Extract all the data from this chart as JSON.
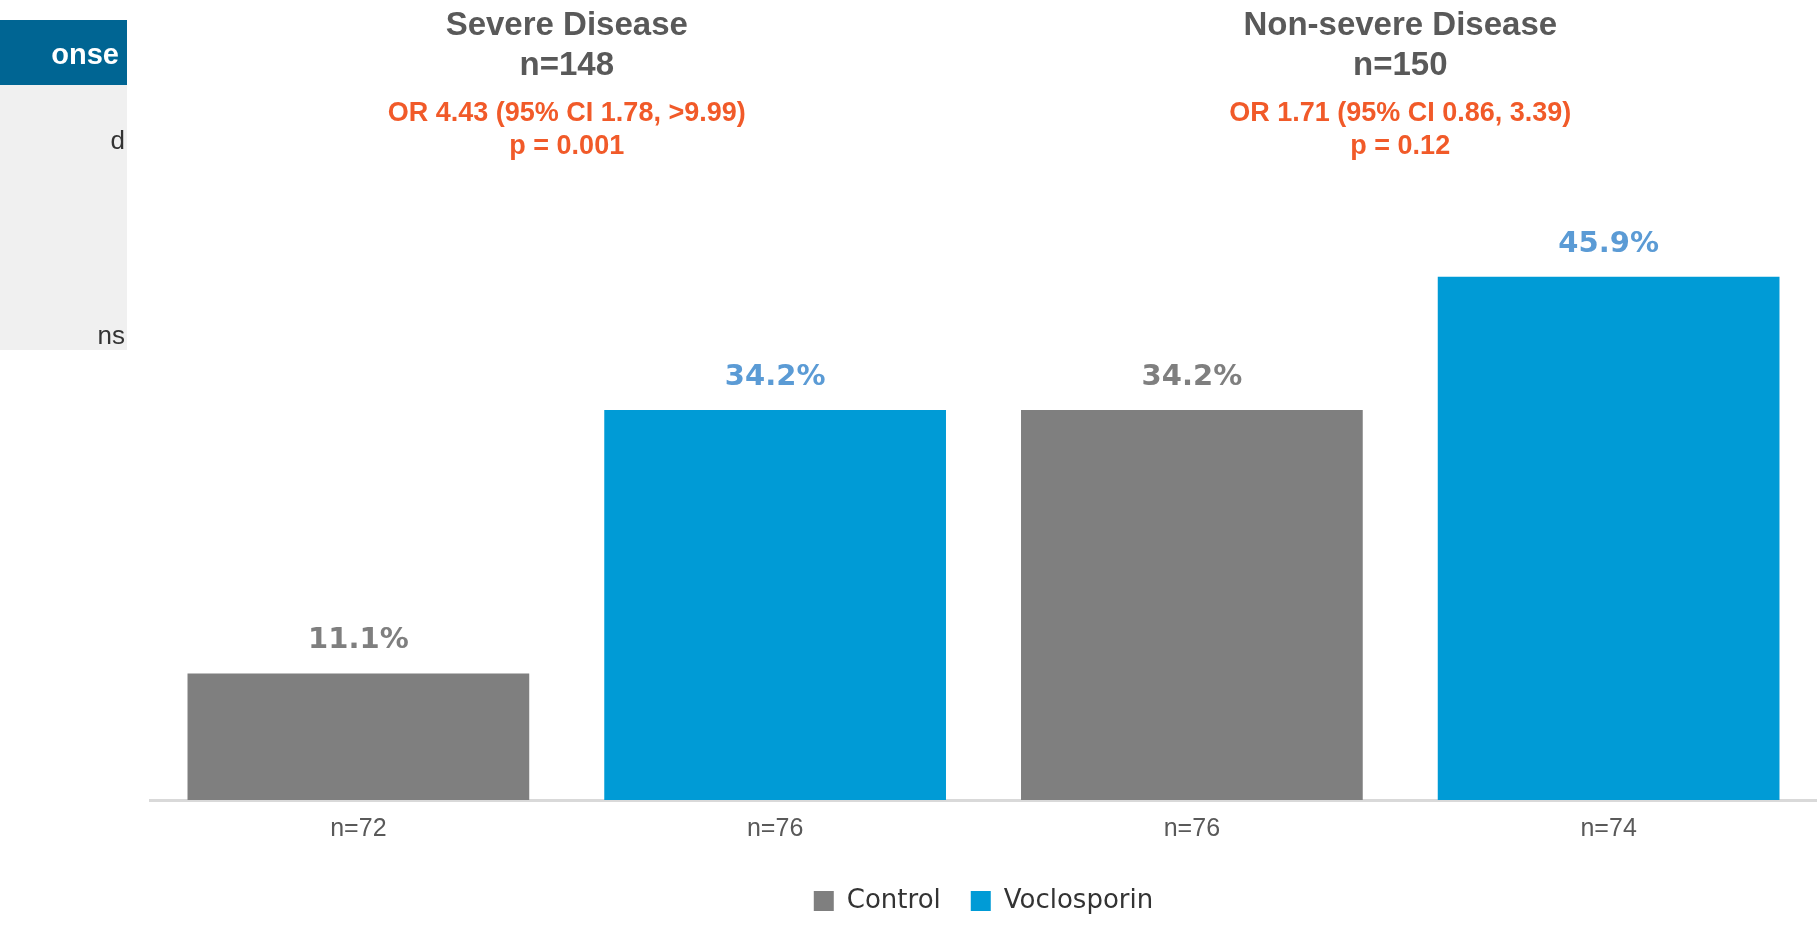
{
  "chart_data": {
    "type": "bar",
    "categories": [
      "n=72",
      "n=76",
      "n=76",
      "n=74"
    ],
    "series": [
      {
        "name": "Control",
        "color": "#7f7f7f",
        "values": [
          11.1,
          null,
          34.2,
          null
        ],
        "value_labels": [
          "11.1%",
          null,
          "34.2%",
          null
        ]
      },
      {
        "name": "Voclosporin",
        "color": "#009bd6",
        "values": [
          null,
          34.2,
          null,
          45.9
        ],
        "value_labels": [
          null,
          "34.2%",
          null,
          "45.9%"
        ]
      }
    ],
    "tick_labels": "x",
    "grid": false,
    "legend": "bottom",
    "annotations": [
      "Severe Disease",
      "n=148",
      "OR 4.43 (95% CI 1.78, >9.99)",
      "p = 0.001",
      "Non-severe Disease",
      "n=150",
      "OR 1.71 (95% CI 0.86, 3.39)",
      "p = 0.12",
      "onse",
      "d",
      "ns"
    ]
  }
}
